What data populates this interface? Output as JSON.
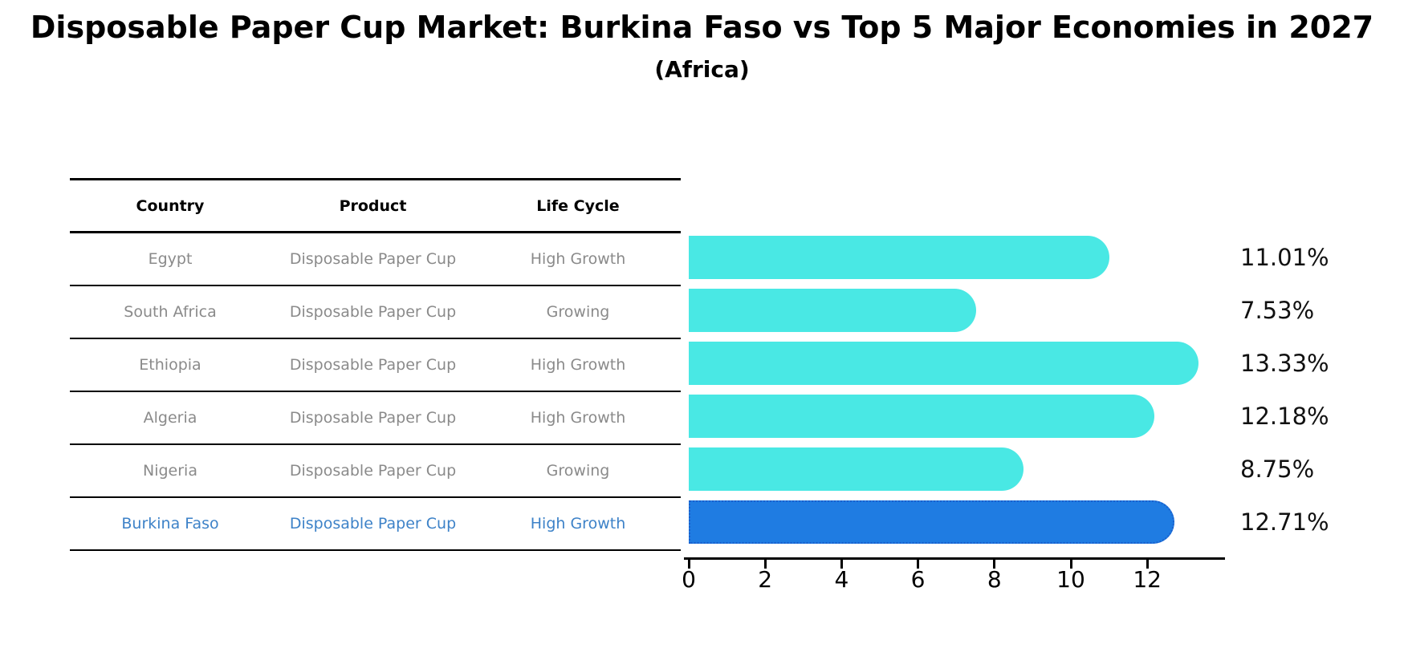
{
  "title": "Disposable Paper Cup Market: Burkina Faso vs Top 5 Major Economies in 2027",
  "subtitle": "(Africa)",
  "table": {
    "headers": [
      "Country",
      "Product",
      "Life Cycle"
    ],
    "rows": [
      {
        "country": "Egypt",
        "product": "Disposable Paper Cup",
        "life_cycle": "High Growth"
      },
      {
        "country": "South Africa",
        "product": "Disposable Paper Cup",
        "life_cycle": "Growing"
      },
      {
        "country": "Ethiopia",
        "product": "Disposable Paper Cup",
        "life_cycle": "High Growth"
      },
      {
        "country": "Algeria",
        "product": "Disposable Paper Cup",
        "life_cycle": "High Growth"
      },
      {
        "country": "Nigeria",
        "product": "Disposable Paper Cup",
        "life_cycle": "Growing"
      },
      {
        "country": "Burkina Faso",
        "product": "Disposable Paper Cup",
        "life_cycle": "High Growth"
      }
    ],
    "highlight_row_index": 5
  },
  "chart_data": {
    "type": "bar",
    "orientation": "horizontal",
    "categories": [
      "Egypt",
      "South Africa",
      "Ethiopia",
      "Algeria",
      "Nigeria",
      "Burkina Faso"
    ],
    "values": [
      11.01,
      7.53,
      13.33,
      12.18,
      8.75,
      12.71
    ],
    "value_labels": [
      "11.01%",
      "7.53%",
      "13.33%",
      "12.18%",
      "8.75%",
      "12.71%"
    ],
    "xticks": [
      0,
      2,
      4,
      6,
      8,
      10,
      12
    ],
    "xlim": [
      0,
      14
    ],
    "grid": false,
    "legend": null,
    "highlight_index": 5,
    "bar_color": "#49E8E4",
    "highlight_bar_color": "#1F7CE2",
    "highlight_bar_border_color": "#1A5FCC"
  },
  "colors": {
    "background": "#FFFFFF",
    "header_text": "#000000",
    "row_text": "#8A8A8A",
    "highlight_text": "#3D82C8",
    "table_line": "#000000",
    "axis": "#000000",
    "value_label_text": "#111111"
  }
}
